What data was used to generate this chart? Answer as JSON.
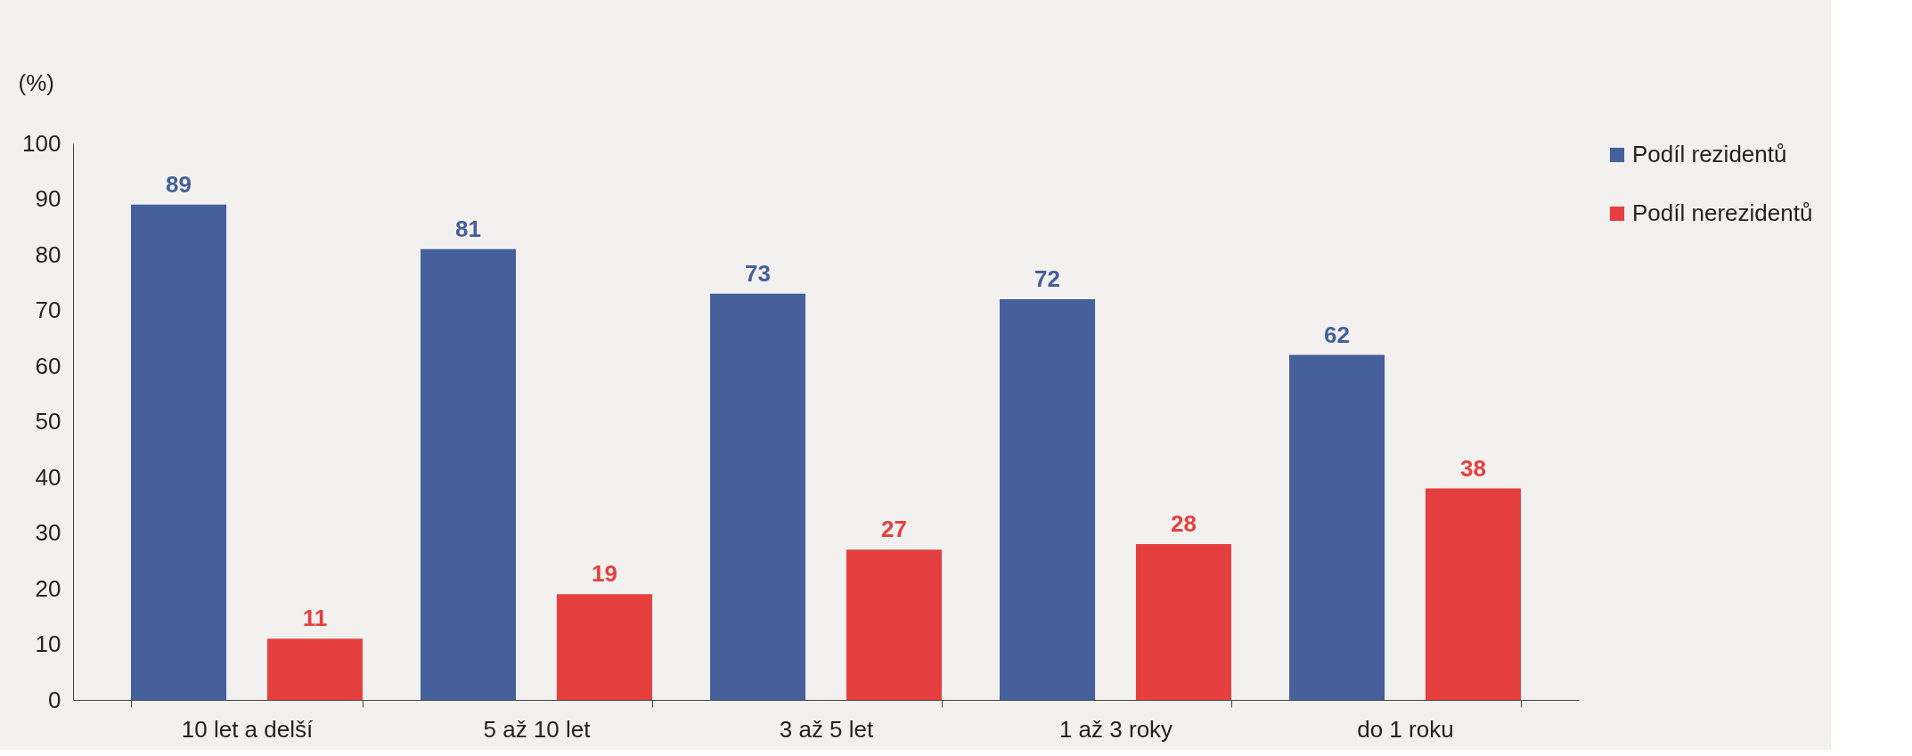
{
  "chart_data": {
    "type": "bar",
    "ylabel": "(%)",
    "categories": [
      "10 let a delší",
      "5 až 10 let",
      "3 až 5 let",
      "1 až 3 roky",
      "do 1 roku"
    ],
    "series": [
      {
        "name": "Podíl rezidentů",
        "color": "#45609b",
        "values": [
          89,
          81,
          73,
          72,
          62
        ]
      },
      {
        "name": "Podíl nerezidentů",
        "color": "#e5403f",
        "values": [
          11,
          19,
          27,
          28,
          38
        ]
      }
    ],
    "ylim": [
      0,
      100
    ],
    "yticks": [
      0,
      10,
      20,
      30,
      40,
      50,
      60,
      70,
      80,
      90,
      100
    ],
    "grid": false,
    "legend": "right",
    "data_labels": true
  }
}
